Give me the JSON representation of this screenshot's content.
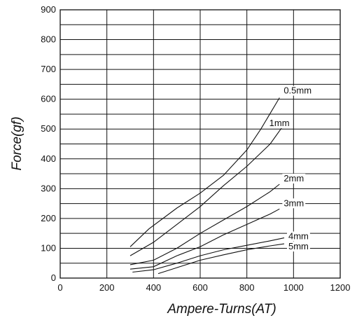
{
  "chart_data": {
    "type": "line",
    "title": "",
    "xlabel": "Ampere-Turns(AT)",
    "ylabel": "Force(gf)",
    "xlim": [
      0,
      1200
    ],
    "ylim": [
      0,
      900
    ],
    "x_ticks": [
      0,
      200,
      400,
      600,
      800,
      1000,
      1200
    ],
    "y_ticks": [
      0,
      100,
      200,
      300,
      400,
      500,
      600,
      700,
      800,
      900
    ],
    "grid": true,
    "legend": "inline labels at curve ends",
    "series": [
      {
        "name": "0.5mm",
        "x": [
          300,
          380,
          500,
          600,
          700,
          800,
          860,
          940
        ],
        "y": [
          105,
          165,
          235,
          285,
          345,
          430,
          500,
          605
        ]
      },
      {
        "name": "1mm",
        "x": [
          300,
          400,
          500,
          600,
          700,
          800,
          900,
          950
        ],
        "y": [
          75,
          120,
          180,
          240,
          310,
          375,
          450,
          505
        ]
      },
      {
        "name": "2mm",
        "x": [
          300,
          400,
          500,
          600,
          700,
          800,
          900,
          940
        ],
        "y": [
          45,
          60,
          100,
          150,
          195,
          240,
          290,
          315
        ]
      },
      {
        "name": "3mm",
        "x": [
          300,
          400,
          500,
          600,
          700,
          800,
          900,
          940
        ],
        "y": [
          30,
          38,
          75,
          105,
          145,
          180,
          215,
          232
        ]
      },
      {
        "name": "4mm",
        "x": [
          310,
          400,
          500,
          600,
          700,
          800,
          900,
          960
        ],
        "y": [
          20,
          28,
          50,
          75,
          95,
          110,
          125,
          135
        ]
      },
      {
        "name": "5mm",
        "x": [
          420,
          500,
          600,
          700,
          800,
          900,
          960
        ],
        "y": [
          15,
          35,
          60,
          78,
          95,
          108,
          115
        ]
      }
    ]
  }
}
